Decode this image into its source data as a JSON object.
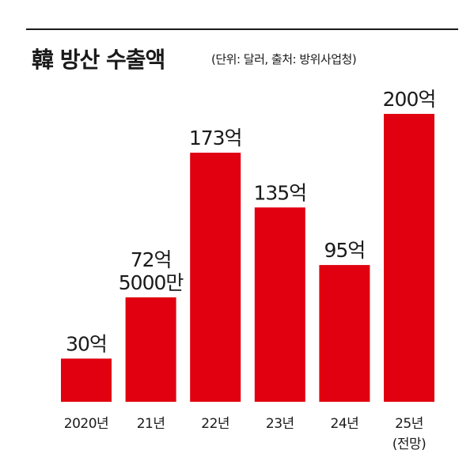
{
  "chart_data": {
    "type": "bar",
    "title": "韓 방산 수출액",
    "subtitle": "(단위: 달러, 출처: 방위사업청)",
    "categories": [
      [
        "2020년"
      ],
      [
        "21년"
      ],
      [
        "22년"
      ],
      [
        "23년"
      ],
      [
        "24년"
      ],
      [
        "25년",
        "(전망)"
      ]
    ],
    "values": [
      30,
      72.5,
      173,
      135,
      95,
      200
    ],
    "value_labels": [
      [
        "30억"
      ],
      [
        "72억",
        "5000만"
      ],
      [
        "173억"
      ],
      [
        "135억"
      ],
      [
        "95억"
      ],
      [
        "200억"
      ]
    ],
    "ylim": [
      0,
      200
    ],
    "grid": false,
    "bar_color": "#e0000f"
  }
}
